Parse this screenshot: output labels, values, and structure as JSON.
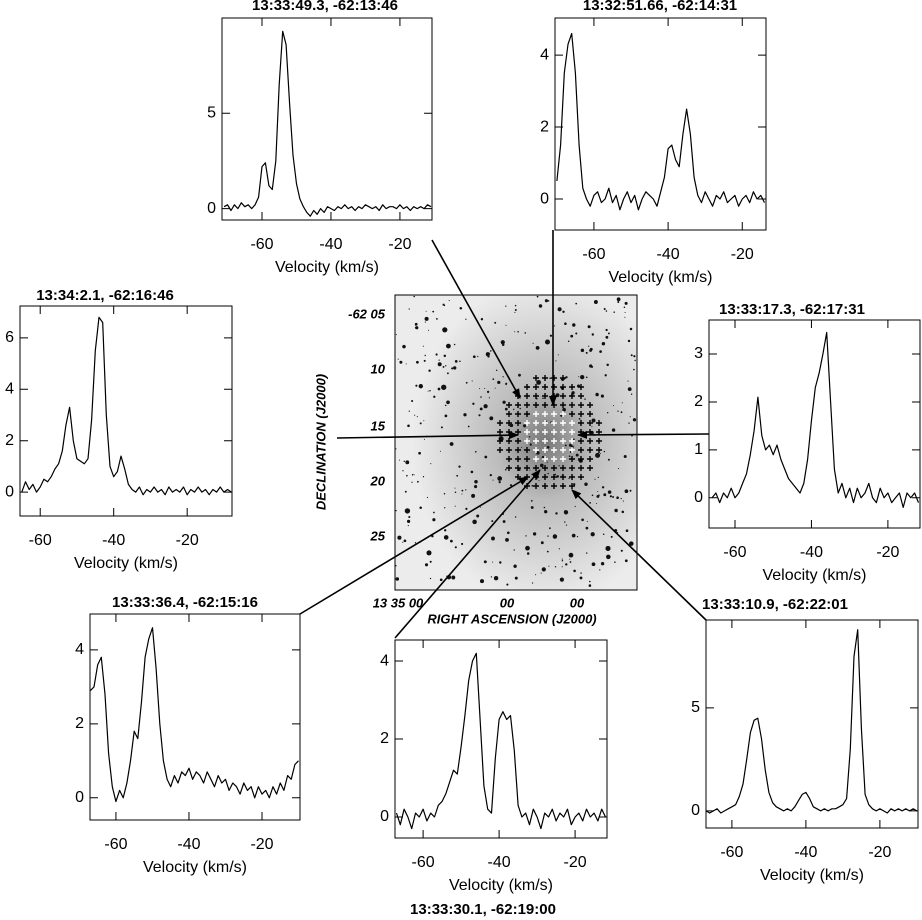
{
  "chart_data": [
    {
      "type": "line",
      "title": "13:33:49.3, -62:13:46",
      "xlabel": "Velocity (km/s)",
      "x": [
        -71,
        -70,
        -69,
        -68,
        -67,
        -66,
        -65,
        -64,
        -63,
        -62,
        -61,
        -60,
        -59,
        -58,
        -57,
        -56,
        -55,
        -54,
        -53,
        -52,
        -51,
        -50,
        -49,
        -48,
        -47,
        -46,
        -45,
        -44,
        -43,
        -42,
        -41,
        -40,
        -39,
        -38,
        -37,
        -36,
        -35,
        -34,
        -33,
        -32,
        -31,
        -30,
        -29,
        -28,
        -27,
        -26,
        -25,
        -24,
        -23,
        -22,
        -21,
        -20,
        -19,
        -18,
        -17,
        -16,
        -15,
        -14,
        -13,
        -12,
        -11
      ],
      "values": [
        0.1,
        0.2,
        -0.1,
        0.2,
        0.0,
        0.3,
        0.1,
        0.2,
        0.0,
        0.2,
        0.6,
        2.2,
        2.4,
        1.2,
        1.0,
        2.5,
        6.5,
        9.3,
        8.6,
        5.5,
        2.8,
        1.3,
        0.5,
        0.1,
        -0.2,
        -0.4,
        -0.1,
        -0.3,
        0.0,
        -0.2,
        0.1,
        0.0,
        -0.1,
        0.1,
        0.0,
        0.2,
        0.0,
        0.1,
        -0.1,
        0.1,
        0.0,
        0.2,
        0.1,
        0.0,
        0.1,
        -0.1,
        0.2,
        0.0,
        0.1,
        0.1,
        0.0,
        0.2,
        0.0,
        0.1,
        -0.1,
        0.1,
        0.0,
        0.1,
        0.0,
        0.2,
        0.1
      ],
      "xlim": [
        -71.6,
        -10.7
      ],
      "ylim": [
        -0.6,
        10
      ],
      "xticks": [
        -60,
        -40,
        -20
      ],
      "yticks": [
        0,
        5
      ],
      "color": "#000000"
    },
    {
      "type": "line",
      "title": "13:32:51.66, -62:14:31",
      "xlabel": "Velocity (km/s)",
      "x": [
        -70,
        -69,
        -68,
        -67,
        -66,
        -65,
        -64,
        -63,
        -62,
        -61,
        -60,
        -59,
        -58,
        -57,
        -56,
        -55,
        -54,
        -53,
        -52,
        -51,
        -50,
        -49,
        -48,
        -47,
        -46,
        -45,
        -44,
        -43,
        -42,
        -41,
        -40,
        -39,
        -38,
        -37,
        -36,
        -35,
        -34,
        -33,
        -32,
        -31,
        -30,
        -29,
        -28,
        -27,
        -26,
        -25,
        -24,
        -23,
        -22,
        -21,
        -20,
        -19,
        -18,
        -17,
        -16,
        -15,
        -14
      ],
      "values": [
        0.5,
        1.5,
        3.5,
        4.3,
        4.6,
        3.5,
        1.5,
        0.3,
        0.0,
        -0.2,
        0.1,
        0.2,
        -0.1,
        0.0,
        0.3,
        -0.1,
        0.1,
        -0.3,
        0.0,
        0.2,
        -0.1,
        0.1,
        -0.3,
        0.0,
        0.2,
        0.1,
        0.0,
        -0.2,
        0.2,
        0.6,
        1.4,
        1.5,
        1.1,
        0.9,
        1.8,
        2.5,
        1.8,
        0.6,
        0.1,
        -0.1,
        0.2,
        0.0,
        -0.2,
        0.1,
        0.0,
        0.2,
        -0.1,
        0.0,
        0.1,
        -0.2,
        0.0,
        0.1,
        -0.1,
        0.2,
        0.0,
        0.1,
        -0.1
      ],
      "xlim": [
        -70.5,
        -13.6
      ],
      "ylim": [
        -0.86,
        5.03
      ],
      "xticks": [
        -60,
        -40,
        -20
      ],
      "yticks": [
        0,
        2,
        4
      ],
      "color": "#000000"
    },
    {
      "type": "line",
      "title": "13:34:2.1, -62:16:46",
      "xlabel": "Velocity (km/s)",
      "x": [
        -65,
        -64,
        -63,
        -62,
        -61,
        -60,
        -59,
        -58,
        -57,
        -56,
        -55,
        -54,
        -53,
        -52,
        -51,
        -50,
        -49,
        -48,
        -47,
        -46,
        -45,
        -44,
        -43,
        -42,
        -41,
        -40,
        -39,
        -38,
        -37,
        -36,
        -35,
        -34,
        -33,
        -32,
        -31,
        -30,
        -29,
        -28,
        -27,
        -26,
        -25,
        -24,
        -23,
        -22,
        -21,
        -20,
        -19,
        -18,
        -17,
        -16,
        -15,
        -14,
        -13,
        -12,
        -11,
        -10,
        -9,
        -8
      ],
      "values": [
        0.0,
        0.4,
        0.1,
        0.3,
        0.0,
        0.2,
        0.5,
        0.4,
        0.6,
        0.9,
        1.1,
        1.6,
        2.6,
        3.3,
        2.0,
        1.3,
        1.2,
        1.1,
        1.3,
        2.8,
        5.5,
        6.8,
        6.6,
        3.0,
        1.0,
        0.6,
        0.8,
        1.4,
        0.9,
        0.3,
        0.1,
        0.0,
        0.2,
        -0.1,
        0.1,
        0.0,
        0.2,
        0.0,
        0.1,
        -0.1,
        0.2,
        0.0,
        0.1,
        0.0,
        0.2,
        -0.1,
        0.1,
        0.0,
        0.2,
        0.0,
        0.1,
        -0.1,
        0.1,
        0.0,
        0.2,
        0.0,
        0.1,
        0.0
      ],
      "xlim": [
        -65.5,
        -7.8
      ],
      "ylim": [
        -0.93,
        7.24
      ],
      "xticks": [
        -60,
        -40,
        -20
      ],
      "yticks": [
        0,
        2,
        4,
        6
      ],
      "color": "#000000"
    },
    {
      "type": "line",
      "title": "13:33:17.3, -62:17:31",
      "xlabel": "Velocity (km/s)",
      "x": [
        -66,
        -65,
        -64,
        -63,
        -62,
        -61,
        -60,
        -59,
        -58,
        -57,
        -56,
        -55,
        -54,
        -53,
        -52,
        -51,
        -50,
        -49,
        -48,
        -47,
        -46,
        -45,
        -44,
        -43,
        -42,
        -41,
        -40,
        -39,
        -38,
        -37,
        -36,
        -35,
        -34,
        -33,
        -32,
        -31,
        -30,
        -29,
        -28,
        -27,
        -26,
        -25,
        -24,
        -23,
        -22,
        -21,
        -20,
        -19,
        -18,
        -17,
        -16,
        -15,
        -14,
        -13,
        -12
      ],
      "values": [
        0.0,
        0.1,
        -0.1,
        0.1,
        0.0,
        0.2,
        0.0,
        0.1,
        0.3,
        0.5,
        0.9,
        1.4,
        2.1,
        1.3,
        1.0,
        1.1,
        0.9,
        1.1,
        0.8,
        0.6,
        0.4,
        0.3,
        0.2,
        0.1,
        0.3,
        0.8,
        1.6,
        2.3,
        2.6,
        3.0,
        3.45,
        2.0,
        0.6,
        0.1,
        0.3,
        0.0,
        0.2,
        -0.1,
        0.2,
        0.0,
        0.1,
        0.3,
        0.0,
        -0.1,
        0.2,
        0.0,
        0.1,
        -0.1,
        0.0,
        0.1,
        -0.2,
        0.1,
        0.0,
        0.1,
        -0.1
      ],
      "xlim": [
        -66.8,
        -11.6
      ],
      "ylim": [
        -0.63,
        3.71
      ],
      "xticks": [
        -60,
        -40,
        -20
      ],
      "yticks": [
        0,
        1,
        2,
        3
      ],
      "color": "#000000"
    },
    {
      "type": "line",
      "title": "13:33:36.4, -62:15:16",
      "xlabel": "Velocity (km/s)",
      "x": [
        -67,
        -66,
        -65,
        -64,
        -63,
        -62,
        -61,
        -60,
        -59,
        -58,
        -57,
        -56,
        -55,
        -54,
        -53,
        -52,
        -51,
        -50,
        -49,
        -48,
        -47,
        -46,
        -45,
        -44,
        -43,
        -42,
        -41,
        -40,
        -39,
        -38,
        -37,
        -36,
        -35,
        -34,
        -33,
        -32,
        -31,
        -30,
        -29,
        -28,
        -27,
        -26,
        -25,
        -24,
        -23,
        -22,
        -21,
        -20,
        -19,
        -18,
        -17,
        -16,
        -15,
        -14,
        -13,
        -12,
        -11,
        -10
      ],
      "values": [
        2.9,
        3.0,
        3.6,
        3.8,
        2.8,
        1.2,
        0.3,
        -0.1,
        0.2,
        0.0,
        0.4,
        1.0,
        1.8,
        1.6,
        2.6,
        3.8,
        4.3,
        4.6,
        3.5,
        2.0,
        1.0,
        0.5,
        0.3,
        0.6,
        0.4,
        0.7,
        0.6,
        0.8,
        0.5,
        0.7,
        0.6,
        0.4,
        0.7,
        0.5,
        0.3,
        0.6,
        0.4,
        0.5,
        0.2,
        0.4,
        0.3,
        0.1,
        0.4,
        0.2,
        0.3,
        0.0,
        0.3,
        0.1,
        0.2,
        0.0,
        0.3,
        0.1,
        0.4,
        0.2,
        0.6,
        0.5,
        0.9,
        1.0
      ],
      "xlim": [
        -67.1,
        -9.6
      ],
      "ylim": [
        -0.6,
        4.97
      ],
      "xticks": [
        -60,
        -40,
        -20
      ],
      "yticks": [
        0,
        2,
        4
      ],
      "color": "#000000"
    },
    {
      "type": "line",
      "title": "13:33:30.1, -62:19:00",
      "xlabel": "Velocity (km/s)",
      "x": [
        -67,
        -66,
        -65,
        -64,
        -63,
        -62,
        -61,
        -60,
        -59,
        -58,
        -57,
        -56,
        -55,
        -54,
        -53,
        -52,
        -51,
        -50,
        -49,
        -48,
        -47,
        -46,
        -45,
        -44,
        -43,
        -42,
        -41,
        -40,
        -39,
        -38,
        -37,
        -36,
        -35,
        -34,
        -33,
        -32,
        -31,
        -30,
        -29,
        -28,
        -27,
        -26,
        -25,
        -24,
        -23,
        -22,
        -21,
        -20,
        -19,
        -18,
        -17,
        -16,
        -15,
        -14,
        -13,
        -12
      ],
      "values": [
        0.1,
        -0.2,
        0.2,
        0.0,
        -0.3,
        0.1,
        0.0,
        0.2,
        -0.1,
        0.1,
        0.0,
        0.3,
        0.4,
        0.6,
        0.9,
        1.2,
        1.1,
        1.8,
        2.6,
        3.5,
        4.0,
        4.2,
        2.5,
        0.8,
        0.2,
        0.1,
        1.5,
        2.5,
        2.7,
        2.5,
        2.6,
        1.7,
        0.3,
        0.0,
        0.1,
        -0.2,
        0.2,
        0.0,
        -0.3,
        0.1,
        0.0,
        0.2,
        -0.1,
        0.1,
        0.0,
        0.2,
        -0.2,
        0.0,
        0.1,
        -0.1,
        0.2,
        0.0,
        0.1,
        -0.1,
        0.2,
        0.0
      ],
      "xlim": [
        -67.4,
        -11.6
      ],
      "ylim": [
        -0.54,
        4.54
      ],
      "xticks": [
        -60,
        -40,
        -20
      ],
      "yticks": [
        0,
        2,
        4
      ],
      "color": "#000000"
    },
    {
      "type": "line",
      "title": "13:33:10.9, -62:22:01",
      "xlabel": "Velocity (km/s)",
      "x": [
        -67,
        -66,
        -65,
        -64,
        -63,
        -62,
        -61,
        -60,
        -59,
        -58,
        -57,
        -56,
        -55,
        -54,
        -53,
        -52,
        -51,
        -50,
        -49,
        -48,
        -47,
        -46,
        -45,
        -44,
        -43,
        -42,
        -41,
        -40,
        -39,
        -38,
        -37,
        -36,
        -35,
        -34,
        -33,
        -32,
        -31,
        -30,
        -29,
        -28,
        -27,
        -26,
        -25,
        -24,
        -23,
        -22,
        -21,
        -20,
        -19,
        -18,
        -17,
        -16,
        -15,
        -14,
        -13,
        -12,
        -11,
        -10
      ],
      "values": [
        0.0,
        -0.1,
        0.0,
        0.1,
        -0.1,
        0.0,
        0.1,
        0.2,
        0.3,
        0.7,
        1.3,
        2.5,
        3.8,
        4.4,
        4.5,
        3.5,
        2.0,
        0.9,
        0.4,
        0.2,
        0.1,
        0.0,
        0.1,
        0.0,
        0.2,
        0.5,
        0.8,
        0.9,
        0.6,
        0.2,
        0.1,
        0.0,
        0.1,
        0.0,
        0.1,
        0.1,
        0.2,
        0.3,
        0.6,
        3.0,
        7.5,
        8.8,
        4.0,
        0.8,
        0.3,
        0.1,
        0.0,
        0.1,
        0.0,
        -0.1,
        0.1,
        0.0,
        0.1,
        0.0,
        0.1,
        0.0,
        0.1,
        0.0
      ],
      "xlim": [
        -67,
        -9.7
      ],
      "ylim": [
        -0.83,
        9.27
      ],
      "xticks": [
        -60,
        -40,
        -20
      ],
      "yticks": [
        0,
        5
      ],
      "color": "#000000"
    }
  ],
  "image": {
    "ylabel": "DECLINATION (J2000)",
    "xlabel": "RIGHT ASCENSION (J2000)",
    "yticks": [
      "-62 05",
      "10",
      "15",
      "20",
      "25"
    ],
    "xticks": [
      "13 35 00",
      "00",
      "00"
    ]
  }
}
